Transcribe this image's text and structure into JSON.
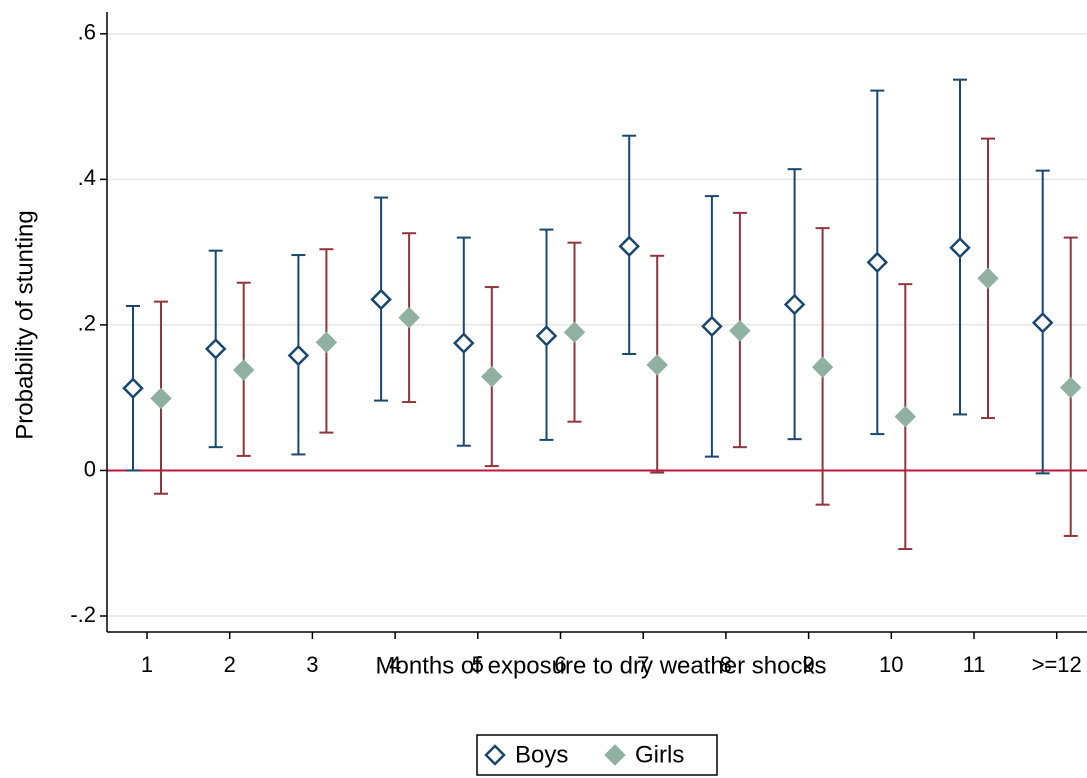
{
  "chart_data": {
    "type": "errorbar",
    "xlabel": "Months of exposure to dry weather shocks",
    "ylabel": "Probability of stunting",
    "categories": [
      "1",
      "2",
      "3",
      "4",
      "5",
      "6",
      "7",
      "8",
      "9",
      "10",
      "11",
      ">=12"
    ],
    "ylim": [
      -0.222,
      0.63
    ],
    "yticks": [
      {
        "value": -0.2,
        "label": "-.2"
      },
      0,
      {
        "value": 0.2,
        "label": ".2"
      },
      {
        "value": 0.4,
        "label": ".4"
      },
      {
        "value": 0.6,
        "label": ".6"
      }
    ],
    "grid": true,
    "reference_line": {
      "value": 0,
      "color": "#c0143c"
    },
    "legend": "bottom",
    "series": [
      {
        "name": "Boys",
        "color": "#1a476f",
        "marker": "hollow-diamond",
        "ci_color": "#1a476f",
        "values": [
          0.113,
          0.167,
          0.158,
          0.235,
          0.175,
          0.185,
          0.308,
          0.198,
          0.228,
          0.286,
          0.306,
          0.203
        ],
        "lo": [
          0.0,
          0.032,
          0.022,
          0.096,
          0.034,
          0.042,
          0.16,
          0.019,
          0.043,
          0.05,
          0.077,
          -0.004
        ],
        "hi": [
          0.226,
          0.302,
          0.296,
          0.375,
          0.32,
          0.331,
          0.46,
          0.377,
          0.414,
          0.522,
          0.537,
          0.412
        ]
      },
      {
        "name": "Girls",
        "color": "#90b0a2",
        "marker": "filled-diamond",
        "ci_color": "#90353b",
        "values": [
          0.099,
          0.138,
          0.176,
          0.21,
          0.129,
          0.19,
          0.145,
          0.192,
          0.142,
          0.074,
          0.264,
          0.114
        ],
        "lo": [
          -0.032,
          0.02,
          0.052,
          0.094,
          0.006,
          0.067,
          -0.003,
          0.032,
          -0.047,
          -0.108,
          0.072,
          -0.09
        ],
        "hi": [
          0.232,
          0.258,
          0.304,
          0.326,
          0.252,
          0.313,
          0.295,
          0.354,
          0.333,
          0.256,
          0.456,
          0.32
        ]
      }
    ]
  }
}
